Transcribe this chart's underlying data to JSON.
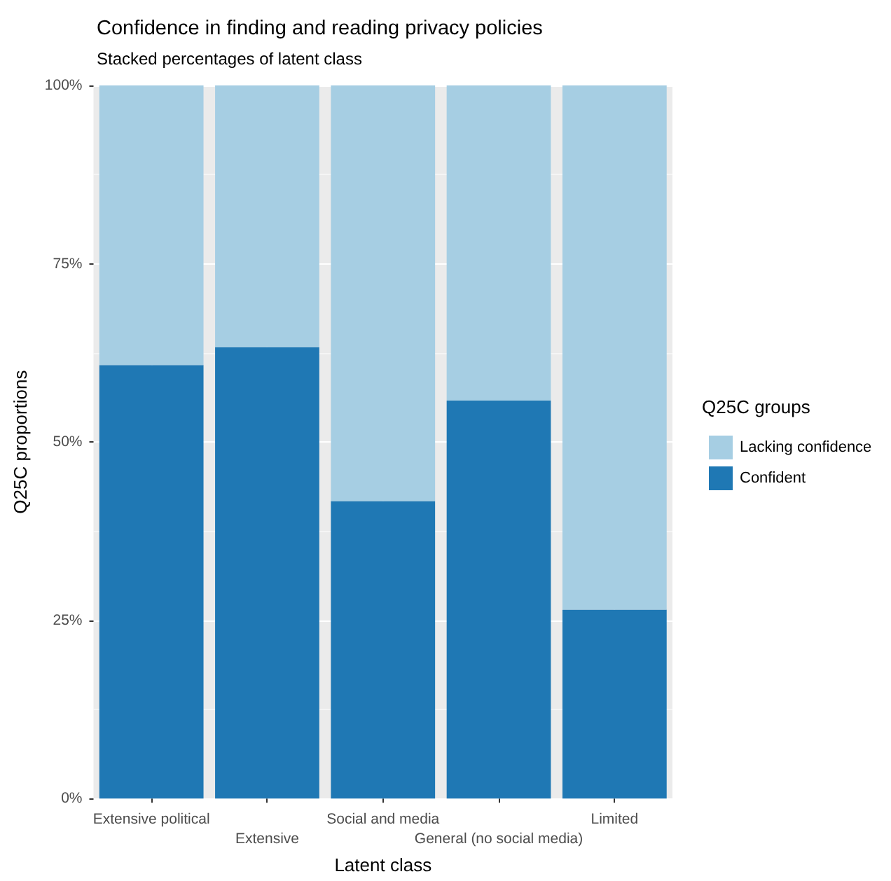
{
  "chart_data": {
    "type": "bar",
    "title": "Confidence in finding and reading privacy policies",
    "subtitle": "Stacked percentages of latent class",
    "xlabel": "Latent class",
    "ylabel": "Q25C proportions",
    "legend_title": "Q25C groups",
    "categories": [
      "Extensive political",
      "Extensive",
      "Social and media",
      "General (no social media)",
      "Limited"
    ],
    "stacked": true,
    "series": [
      {
        "name": "Confident",
        "color": "#1f78b4",
        "values": [
          60.8,
          63.3,
          41.7,
          55.8,
          26.5
        ]
      },
      {
        "name": "Lacking confidence",
        "color": "#a6cee3",
        "values": [
          39.2,
          36.7,
          58.3,
          44.2,
          73.5
        ]
      }
    ],
    "ylim": [
      0,
      100
    ],
    "yticks": [
      {
        "value": 0,
        "label": "0%"
      },
      {
        "value": 25,
        "label": "25%"
      },
      {
        "value": 50,
        "label": "50%"
      },
      {
        "value": 75,
        "label": "75%"
      },
      {
        "value": 100,
        "label": "100%"
      }
    ],
    "grid": true,
    "legend": "right"
  }
}
